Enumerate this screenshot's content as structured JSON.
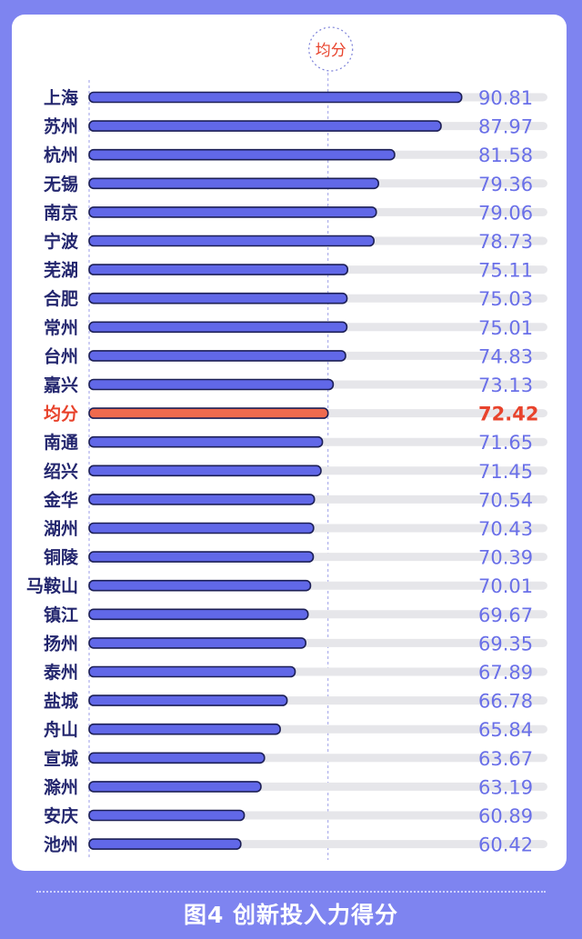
{
  "chart_data": {
    "type": "bar",
    "orientation": "horizontal",
    "categories": [
      "上海",
      "苏州",
      "杭州",
      "无锡",
      "南京",
      "宁波",
      "芜湖",
      "合肥",
      "常州",
      "台州",
      "嘉兴",
      "均分",
      "南通",
      "绍兴",
      "金华",
      "湖州",
      "铜陵",
      "马鞍山",
      "镇江",
      "扬州",
      "泰州",
      "盐城",
      "舟山",
      "宣城",
      "滁州",
      "安庆",
      "池州"
    ],
    "values": [
      90.81,
      87.97,
      81.58,
      79.36,
      79.06,
      78.73,
      75.11,
      75.03,
      75.01,
      74.83,
      73.13,
      72.42,
      71.65,
      71.45,
      70.54,
      70.43,
      70.39,
      70.01,
      69.67,
      69.35,
      67.89,
      66.78,
      65.84,
      63.67,
      63.19,
      60.89,
      60.42
    ],
    "value_labels": [
      "90.81",
      "87.97",
      "81.58",
      "79.36",
      "79.06",
      "78.73",
      "75.11",
      "75.03",
      "75.01",
      "74.83",
      "73.13",
      "72.42",
      "71.65",
      "71.45",
      "70.54",
      "70.43",
      "70.39",
      "70.01",
      "69.67",
      "69.35",
      "67.89",
      "66.78",
      "65.84",
      "63.67",
      "63.19",
      "60.89",
      "60.42"
    ],
    "highlight_category": "均分",
    "average_marker_label": "均分",
    "average_value": 72.42,
    "colors": {
      "bar": "#6168e8",
      "bar_outline": "#1c1f55",
      "highlight_bar": "#ef6a4e",
      "track": "#e6e6ea",
      "label": "#23266e",
      "value_label": "#6a70e8",
      "highlight_text": "#e8432c",
      "guide_line": "#9b9ee8"
    }
  },
  "footer": {
    "caption": "图4 创新投入力得分"
  }
}
